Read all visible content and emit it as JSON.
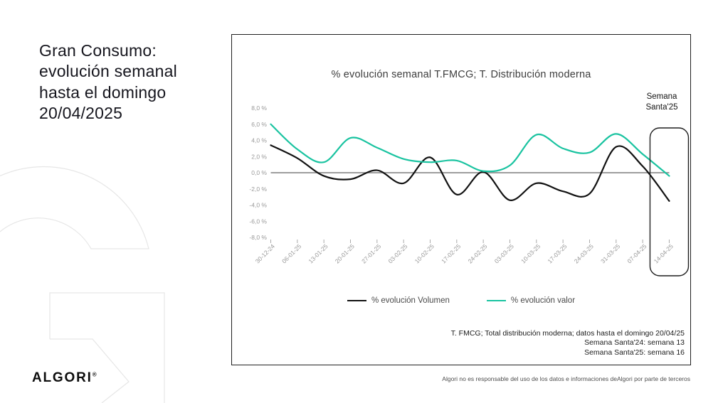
{
  "slide": {
    "title": "Gran Consumo: evolución semanal hasta el domingo 20/04/2025",
    "logo_text": "ALGORI",
    "logo_mark": "®",
    "disclaimer": "Algori no es responsable del uso de los datos e informaciones deAlgori por parte de terceros"
  },
  "chart": {
    "title": "% evolución semanal T.FMCG; T. Distribución moderna",
    "annotation": "Semana Santa'25",
    "legend": [
      {
        "label": "% evolución Volumen",
        "color": "#111111"
      },
      {
        "label": "% evolución valor",
        "color": "#19c3a0"
      }
    ],
    "footnotes": [
      "T. FMCG; Total distribución moderna; datos hasta el domingo 20/04/25",
      "Semana Santa'24: semana 13",
      "Semana Santa'25: semana 16"
    ]
  },
  "chart_data": {
    "type": "line",
    "title": "% evolución semanal T.FMCG; T. Distribución moderna",
    "xlabel": "",
    "ylabel": "",
    "ylim": [
      -8,
      8
    ],
    "grid": false,
    "legend_position": "bottom",
    "y_ticks": [
      {
        "value": 8,
        "label": "8,0 %"
      },
      {
        "value": 6,
        "label": "6,0 %"
      },
      {
        "value": 4,
        "label": "4,0 %"
      },
      {
        "value": 2,
        "label": "2,0 %"
      },
      {
        "value": 0,
        "label": "0,0 %"
      },
      {
        "value": -2,
        "label": "-2,0 %"
      },
      {
        "value": -4,
        "label": "-4,0 %"
      },
      {
        "value": -6,
        "label": "-6,0 %"
      },
      {
        "value": -8,
        "label": "-8,0 %"
      }
    ],
    "categories": [
      "30-12-24",
      "06-01-25",
      "13-01-25",
      "20-01-25",
      "27-01-25",
      "03-02-25",
      "10-02-25",
      "17-02-25",
      "24-02-25",
      "03-03-25",
      "10-03-25",
      "17-03-25",
      "24-03-25",
      "31-03-25",
      "07-04-25",
      "14-04-25"
    ],
    "series": [
      {
        "name": "% evolución Volumen",
        "color": "#111111",
        "values": [
          3.4,
          1.8,
          -0.4,
          -0.8,
          0.3,
          -1.3,
          1.9,
          -2.7,
          0.1,
          -3.4,
          -1.3,
          -2.3,
          -2.6,
          3.2,
          0.8,
          -3.5
        ]
      },
      {
        "name": "% evolución valor",
        "color": "#19c3a0",
        "values": [
          6.0,
          2.9,
          1.3,
          4.3,
          3.1,
          1.7,
          1.3,
          1.5,
          0.2,
          0.9,
          4.7,
          3.0,
          2.5,
          4.8,
          2.3,
          -0.4
        ]
      }
    ],
    "highlight": {
      "category": "14-04-25",
      "label": "Semana Santa'25"
    }
  }
}
